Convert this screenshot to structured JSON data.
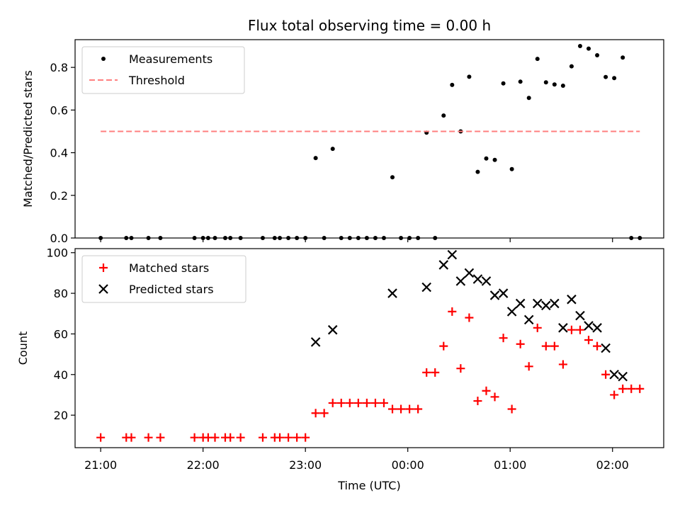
{
  "chart_data": [
    {
      "type": "scatter",
      "title": "Flux total observing time = 0.00 h",
      "xlabel": "",
      "ylabel": "Matched/Predicted stars",
      "ylim": [
        0,
        0.93
      ],
      "xlim": [
        "20:45",
        "02:30"
      ],
      "yticks": [
        "0.0",
        "0.2",
        "0.4",
        "0.6",
        "0.8"
      ],
      "legend_position": "top-left",
      "series": [
        {
          "name": "Measurements",
          "marker": "dot",
          "color": "#000000",
          "points": [
            [
              "21:00",
              0.0
            ],
            [
              "21:15",
              0.0
            ],
            [
              "21:18",
              0.0
            ],
            [
              "21:28",
              0.0
            ],
            [
              "21:35",
              0.0
            ],
            [
              "21:55",
              0.0
            ],
            [
              "22:00",
              0.0
            ],
            [
              "22:03",
              0.0
            ],
            [
              "22:07",
              0.0
            ],
            [
              "22:13",
              0.0
            ],
            [
              "22:16",
              0.0
            ],
            [
              "22:22",
              0.0
            ],
            [
              "22:35",
              0.0
            ],
            [
              "22:42",
              0.0
            ],
            [
              "22:45",
              0.0
            ],
            [
              "22:50",
              0.0
            ],
            [
              "22:55",
              0.0
            ],
            [
              "23:00",
              0.0
            ],
            [
              "23:06",
              0.375
            ],
            [
              "23:11",
              0.0
            ],
            [
              "23:16",
              0.418
            ],
            [
              "23:21",
              0.0
            ],
            [
              "23:26",
              0.0
            ],
            [
              "23:31",
              0.0
            ],
            [
              "23:36",
              0.0
            ],
            [
              "23:41",
              0.0
            ],
            [
              "23:46",
              0.0
            ],
            [
              "23:51",
              0.285
            ],
            [
              "23:56",
              0.0
            ],
            [
              "00:01",
              0.0
            ],
            [
              "00:06",
              0.0
            ],
            [
              "00:11",
              0.494
            ],
            [
              "00:16",
              0.0
            ],
            [
              "00:21",
              0.574
            ],
            [
              "00:26",
              0.718
            ],
            [
              "00:31",
              0.5
            ],
            [
              "00:36",
              0.756
            ],
            [
              "00:41",
              0.31
            ],
            [
              "00:46",
              0.373
            ],
            [
              "00:51",
              0.366
            ],
            [
              "00:56",
              0.725
            ],
            [
              "01:01",
              0.323
            ],
            [
              "01:06",
              0.733
            ],
            [
              "01:11",
              0.657
            ],
            [
              "01:16",
              0.84
            ],
            [
              "01:21",
              0.73
            ],
            [
              "01:26",
              0.72
            ],
            [
              "01:31",
              0.714
            ],
            [
              "01:36",
              0.805
            ],
            [
              "01:41",
              0.9
            ],
            [
              "01:46",
              0.888
            ],
            [
              "01:51",
              0.857
            ],
            [
              "01:56",
              0.755
            ],
            [
              "02:01",
              0.75
            ],
            [
              "02:06",
              0.846
            ],
            [
              "02:11",
              0.0
            ],
            [
              "02:16",
              0.0
            ]
          ]
        },
        {
          "name": "Threshold",
          "marker": "dashed-line",
          "color": "#ff7f7f",
          "points": [
            [
              "21:00",
              0.5
            ],
            [
              "02:16",
              0.5
            ]
          ]
        }
      ]
    },
    {
      "type": "scatter",
      "title": "",
      "xlabel": "Time (UTC)",
      "ylabel": "Count",
      "ylim": [
        4,
        102
      ],
      "xlim": [
        "20:45",
        "02:30"
      ],
      "yticks": [
        "20",
        "40",
        "60",
        "80",
        "100"
      ],
      "xticks": [
        "21:00",
        "22:00",
        "23:00",
        "00:00",
        "01:00",
        "02:00"
      ],
      "legend_position": "top-left",
      "series": [
        {
          "name": "Matched stars",
          "marker": "plus",
          "color": "#ff0000",
          "points": [
            [
              "21:00",
              9
            ],
            [
              "21:15",
              9
            ],
            [
              "21:18",
              9
            ],
            [
              "21:28",
              9
            ],
            [
              "21:35",
              9
            ],
            [
              "21:55",
              9
            ],
            [
              "22:00",
              9
            ],
            [
              "22:03",
              9
            ],
            [
              "22:07",
              9
            ],
            [
              "22:13",
              9
            ],
            [
              "22:16",
              9
            ],
            [
              "22:22",
              9
            ],
            [
              "22:35",
              9
            ],
            [
              "22:42",
              9
            ],
            [
              "22:45",
              9
            ],
            [
              "22:50",
              9
            ],
            [
              "22:55",
              9
            ],
            [
              "23:00",
              9
            ],
            [
              "23:06",
              21
            ],
            [
              "23:11",
              21
            ],
            [
              "23:16",
              26
            ],
            [
              "23:21",
              26
            ],
            [
              "23:26",
              26
            ],
            [
              "23:31",
              26
            ],
            [
              "23:36",
              26
            ],
            [
              "23:41",
              26
            ],
            [
              "23:46",
              26
            ],
            [
              "23:51",
              23
            ],
            [
              "23:56",
              23
            ],
            [
              "00:01",
              23
            ],
            [
              "00:06",
              23
            ],
            [
              "00:11",
              41
            ],
            [
              "00:16",
              41
            ],
            [
              "00:21",
              54
            ],
            [
              "00:26",
              71
            ],
            [
              "00:31",
              43
            ],
            [
              "00:36",
              68
            ],
            [
              "00:41",
              27
            ],
            [
              "00:46",
              32
            ],
            [
              "00:51",
              29
            ],
            [
              "00:56",
              58
            ],
            [
              "01:01",
              23
            ],
            [
              "01:06",
              55
            ],
            [
              "01:11",
              44
            ],
            [
              "01:16",
              63
            ],
            [
              "01:21",
              54
            ],
            [
              "01:26",
              54
            ],
            [
              "01:31",
              45
            ],
            [
              "01:36",
              62
            ],
            [
              "01:41",
              62
            ],
            [
              "01:46",
              57
            ],
            [
              "01:51",
              54
            ],
            [
              "01:56",
              40
            ],
            [
              "02:01",
              30
            ],
            [
              "02:06",
              33
            ],
            [
              "02:11",
              33
            ],
            [
              "02:16",
              33
            ]
          ]
        },
        {
          "name": "Predicted stars",
          "marker": "x",
          "color": "#000000",
          "points": [
            [
              "23:06",
              56
            ],
            [
              "23:16",
              62
            ],
            [
              "23:51",
              80
            ],
            [
              "00:11",
              83
            ],
            [
              "00:21",
              94
            ],
            [
              "00:26",
              99
            ],
            [
              "00:31",
              86
            ],
            [
              "00:36",
              90
            ],
            [
              "00:41",
              87
            ],
            [
              "00:46",
              86
            ],
            [
              "00:51",
              79
            ],
            [
              "00:56",
              80
            ],
            [
              "01:01",
              71
            ],
            [
              "01:06",
              75
            ],
            [
              "01:11",
              67
            ],
            [
              "01:16",
              75
            ],
            [
              "01:21",
              74
            ],
            [
              "01:26",
              75
            ],
            [
              "01:31",
              63
            ],
            [
              "01:36",
              77
            ],
            [
              "01:41",
              69
            ],
            [
              "01:46",
              64
            ],
            [
              "01:51",
              63
            ],
            [
              "01:56",
              53
            ],
            [
              "02:01",
              40
            ],
            [
              "02:06",
              39
            ]
          ]
        }
      ]
    }
  ]
}
